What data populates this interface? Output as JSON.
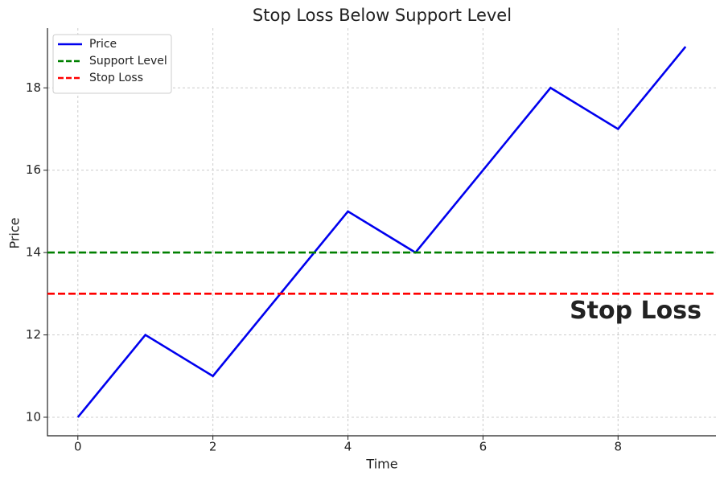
{
  "chart_data": {
    "type": "line",
    "title": "Stop Loss Below Support Level",
    "x_label": "Time",
    "y_label": "Price",
    "x": [
      0,
      1,
      2,
      3,
      4,
      5,
      6,
      7,
      8,
      9
    ],
    "series": [
      {
        "name": "Price",
        "color": "#0000ee",
        "values": [
          10,
          12,
          11,
          13,
          15,
          14,
          16,
          18,
          17,
          19
        ]
      }
    ],
    "hlines": [
      {
        "name": "Support Level",
        "color": "#008000",
        "value": 14
      },
      {
        "name": "Stop Loss",
        "color": "#ff0000",
        "value": 13
      }
    ],
    "annotation": "Stop Loss",
    "xlim": [
      -0.45,
      9.45
    ],
    "ylim": [
      9.55,
      19.45
    ],
    "xticks": [
      0,
      2,
      4,
      6,
      8
    ],
    "yticks": [
      10,
      12,
      14,
      16,
      18
    ],
    "grid": true,
    "legend": "upper left"
  }
}
